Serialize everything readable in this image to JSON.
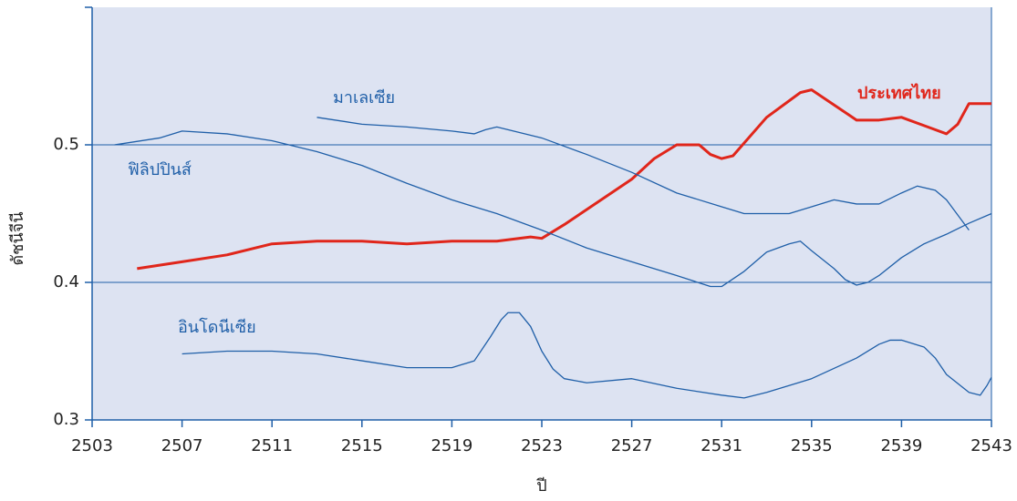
{
  "chart_data": {
    "type": "line",
    "xlabel": "ปี",
    "ylabel": "ดัชนีจีนี",
    "xlim": [
      2503,
      2543
    ],
    "xticks": [
      2503,
      2507,
      2511,
      2515,
      2519,
      2523,
      2527,
      2531,
      2535,
      2539,
      2543
    ],
    "ylim": [
      0.3,
      0.6
    ],
    "yticks": [
      0.3,
      0.4,
      0.5
    ],
    "grid": true,
    "series": [
      {
        "name": "ประเทศไทย",
        "color": "#e0261b",
        "x": [
          2505,
          2507,
          2509,
          2511,
          2513,
          2515,
          2517,
          2519,
          2521,
          2522.5,
          2523,
          2524,
          2525,
          2527,
          2528,
          2529,
          2530,
          2530.5,
          2531,
          2531.5,
          2533,
          2534.5,
          2535,
          2537,
          2538,
          2539,
          2541,
          2541.5,
          2542,
          2543
        ],
        "values": [
          0.41,
          0.415,
          0.42,
          0.428,
          0.43,
          0.43,
          0.428,
          0.43,
          0.43,
          0.433,
          0.432,
          0.442,
          0.453,
          0.475,
          0.49,
          0.5,
          0.5,
          0.493,
          0.49,
          0.492,
          0.52,
          0.538,
          0.54,
          0.518,
          0.518,
          0.52,
          0.508,
          0.515,
          0.53,
          0.53
        ]
      },
      {
        "name": "มาเลเซีย",
        "color": "#1f5fa8",
        "x": [
          2513,
          2515,
          2517,
          2519,
          2520,
          2520.5,
          2521,
          2523,
          2525,
          2527,
          2529,
          2531,
          2532,
          2534,
          2535,
          2536,
          2537,
          2538,
          2539,
          2539.7,
          2540.5,
          2541,
          2542
        ],
        "values": [
          0.52,
          0.515,
          0.513,
          0.51,
          0.508,
          0.511,
          0.513,
          0.505,
          0.493,
          0.48,
          0.465,
          0.455,
          0.45,
          0.45,
          0.455,
          0.46,
          0.457,
          0.457,
          0.465,
          0.47,
          0.467,
          0.46,
          0.438
        ]
      },
      {
        "name": "ฟิลิปปินส์",
        "color": "#1f5fa8",
        "x": [
          2504,
          2506,
          2507,
          2509,
          2511,
          2513,
          2515,
          2517,
          2519,
          2521,
          2523,
          2525,
          2527,
          2529,
          2530.5,
          2531,
          2532,
          2533,
          2534,
          2534.5,
          2535,
          2536,
          2536.5,
          2537,
          2537.5,
          2538,
          2539,
          2540,
          2541,
          2542,
          2543
        ],
        "values": [
          0.5,
          0.505,
          0.51,
          0.508,
          0.503,
          0.495,
          0.485,
          0.472,
          0.46,
          0.45,
          0.438,
          0.425,
          0.415,
          0.405,
          0.397,
          0.397,
          0.408,
          0.422,
          0.428,
          0.43,
          0.423,
          0.41,
          0.402,
          0.398,
          0.4,
          0.405,
          0.418,
          0.428,
          0.435,
          0.443,
          0.45
        ]
      },
      {
        "name": "อินโดนีเซีย",
        "color": "#1f5fa8",
        "x": [
          2507,
          2509,
          2511,
          2513,
          2515,
          2517,
          2519,
          2520,
          2520.7,
          2521.2,
          2521.5,
          2522,
          2522.5,
          2523,
          2523.5,
          2524,
          2525,
          2527,
          2529,
          2531,
          2532,
          2533,
          2535,
          2537,
          2538,
          2538.5,
          2539,
          2540,
          2540.5,
          2541,
          2542,
          2542.5,
          2542.8,
          2543
        ],
        "values": [
          0.348,
          0.35,
          0.35,
          0.348,
          0.343,
          0.338,
          0.338,
          0.343,
          0.36,
          0.373,
          0.378,
          0.378,
          0.368,
          0.35,
          0.337,
          0.33,
          0.327,
          0.33,
          0.323,
          0.318,
          0.316,
          0.32,
          0.33,
          0.345,
          0.355,
          0.358,
          0.358,
          0.353,
          0.345,
          0.333,
          0.32,
          0.318,
          0.325,
          0.331
        ]
      }
    ]
  }
}
